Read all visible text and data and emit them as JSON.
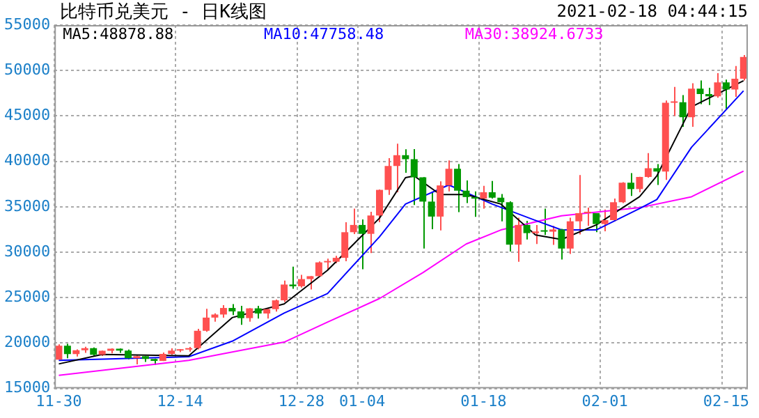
{
  "chart_data": {
    "type": "candlestick",
    "title": "比特币兑美元 - 日K线图",
    "annotations": [
      "2021-02-18 04:44:15"
    ],
    "categories": [
      "11-30",
      null,
      null,
      null,
      null,
      null,
      null,
      null,
      null,
      null,
      null,
      null,
      null,
      null,
      "12-14",
      null,
      null,
      null,
      null,
      null,
      null,
      null,
      null,
      null,
      null,
      null,
      null,
      null,
      "12-28",
      null,
      null,
      null,
      null,
      null,
      null,
      "01-04",
      null,
      null,
      null,
      null,
      null,
      null,
      null,
      null,
      null,
      null,
      null,
      null,
      null,
      "01-18",
      null,
      null,
      null,
      null,
      null,
      null,
      null,
      null,
      null,
      null,
      null,
      null,
      null,
      "02-01",
      null,
      null,
      null,
      null,
      null,
      null,
      null,
      null,
      null,
      null,
      null,
      null,
      null,
      "02-15",
      null,
      null
    ],
    "ohlc": [
      [
        18180,
        19850,
        18180,
        19700
      ],
      [
        19700,
        19920,
        18330,
        18790
      ],
      [
        18790,
        19310,
        18510,
        19210
      ],
      [
        19210,
        19590,
        18920,
        19440
      ],
      [
        19440,
        19510,
        18600,
        18700
      ],
      [
        18700,
        19170,
        18580,
        19150
      ],
      [
        19150,
        19420,
        18860,
        19370
      ],
      [
        19370,
        19400,
        18920,
        19170
      ],
      [
        19170,
        19290,
        18200,
        18330
      ],
      [
        18330,
        18630,
        17650,
        18550
      ],
      [
        18550,
        18560,
        17920,
        18250
      ],
      [
        18250,
        18290,
        17580,
        18040
      ],
      [
        18040,
        18950,
        18020,
        18810
      ],
      [
        18810,
        19410,
        18710,
        19170
      ],
      [
        19170,
        19340,
        19000,
        19280
      ],
      [
        19280,
        19570,
        19050,
        19440
      ],
      [
        19440,
        21560,
        19300,
        21350
      ],
      [
        21350,
        23770,
        21230,
        22800
      ],
      [
        22800,
        23280,
        22350,
        23140
      ],
      [
        23140,
        24170,
        22800,
        23860
      ],
      [
        23860,
        24290,
        23070,
        23480
      ],
      [
        23480,
        24100,
        22000,
        22740
      ],
      [
        22740,
        23840,
        22360,
        23820
      ],
      [
        23820,
        24100,
        22700,
        23250
      ],
      [
        23250,
        23780,
        22700,
        23730
      ],
      [
        23730,
        24790,
        23460,
        24700
      ],
      [
        24700,
        26870,
        24510,
        26440
      ],
      [
        26440,
        28400,
        25970,
        26250
      ],
      [
        26250,
        27500,
        26100,
        27040
      ],
      [
        27040,
        27370,
        25900,
        27360
      ],
      [
        27360,
        28990,
        27330,
        28880
      ],
      [
        28880,
        29300,
        28000,
        28950
      ],
      [
        28950,
        29600,
        28800,
        29380
      ],
      [
        29380,
        33300,
        29000,
        32200
      ],
      [
        32200,
        34800,
        32000,
        33000
      ],
      [
        33000,
        33600,
        28130,
        32020
      ],
      [
        32020,
        34440,
        29900,
        34040
      ],
      [
        34040,
        36900,
        33300,
        36860
      ],
      [
        36860,
        40350,
        36300,
        39490
      ],
      [
        39490,
        41950,
        36600,
        40670
      ],
      [
        40670,
        41330,
        38750,
        40240
      ],
      [
        40240,
        41350,
        35200,
        38240
      ],
      [
        38240,
        38260,
        30400,
        35570
      ],
      [
        35570,
        36600,
        32530,
        33920
      ],
      [
        33920,
        37800,
        32400,
        37350
      ],
      [
        37350,
        40100,
        36700,
        39190
      ],
      [
        39190,
        39700,
        34400,
        36770
      ],
      [
        36770,
        37900,
        35400,
        36070
      ],
      [
        36070,
        36700,
        33900,
        35900
      ],
      [
        35900,
        37300,
        34800,
        36600
      ],
      [
        36600,
        37850,
        35900,
        36000
      ],
      [
        36000,
        36400,
        33400,
        35500
      ],
      [
        35500,
        35600,
        30070,
        30830
      ],
      [
        30830,
        33800,
        28950,
        33000
      ],
      [
        33000,
        33450,
        31400,
        32100
      ],
      [
        32100,
        33000,
        30900,
        32280
      ],
      [
        32280,
        34800,
        31900,
        32260
      ],
      [
        32260,
        32900,
        30800,
        32500
      ],
      [
        32500,
        32560,
        29200,
        30400
      ],
      [
        30400,
        33800,
        29800,
        33400
      ],
      [
        33400,
        38500,
        31950,
        34300
      ],
      [
        34300,
        34900,
        32900,
        34300
      ],
      [
        34300,
        34300,
        32200,
        33100
      ],
      [
        33100,
        34700,
        32300,
        33530
      ],
      [
        33530,
        35900,
        33400,
        35500
      ],
      [
        35500,
        37700,
        35400,
        37650
      ],
      [
        37650,
        38700,
        36200,
        36950
      ],
      [
        36950,
        38300,
        36600,
        38290
      ],
      [
        38290,
        40900,
        38200,
        39250
      ],
      [
        39250,
        39700,
        37400,
        38880
      ],
      [
        38880,
        46700,
        37950,
        46450
      ],
      [
        46450,
        48200,
        45000,
        46500
      ],
      [
        46500,
        47300,
        43800,
        44850
      ],
      [
        44850,
        48600,
        43800,
        48000
      ],
      [
        48000,
        48900,
        46300,
        47400
      ],
      [
        47400,
        48100,
        46200,
        47160
      ],
      [
        47160,
        49700,
        47000,
        48700
      ],
      [
        48700,
        49000,
        45800,
        47900
      ],
      [
        47900,
        50500,
        47100,
        49100
      ],
      [
        49100,
        51700,
        48900,
        51500
      ]
    ],
    "series": [
      {
        "name": "MA5:48878.88",
        "type": "line",
        "color": "#000000",
        "values": [
          17700,
          null,
          null,
          null,
          null,
          18750,
          null,
          null,
          null,
          null,
          null,
          null,
          null,
          null,
          null,
          18600,
          null,
          null,
          null,
          null,
          22800,
          null,
          null,
          null,
          null,
          null,
          24300,
          null,
          null,
          null,
          null,
          28000,
          null,
          null,
          null,
          null,
          null,
          33750,
          null,
          null,
          38200,
          38400,
          null,
          null,
          36350,
          null,
          null,
          36350,
          null,
          null,
          null,
          35300,
          null,
          null,
          null,
          31900,
          null,
          null,
          31400,
          null,
          null,
          null,
          33000,
          null,
          null,
          null,
          null,
          36100,
          null,
          38400,
          null,
          null,
          null,
          46000,
          null,
          null,
          null,
          null,
          null,
          48879
        ]
      },
      {
        "name": "MA10:47758.48",
        "type": "line",
        "color": "#0000ff",
        "values": [
          18100,
          null,
          null,
          null,
          null,
          null,
          null,
          null,
          null,
          null,
          null,
          null,
          null,
          null,
          null,
          18500,
          null,
          null,
          null,
          null,
          20200,
          null,
          null,
          null,
          null,
          null,
          23300,
          null,
          null,
          null,
          null,
          25450,
          null,
          null,
          null,
          null,
          null,
          31700,
          null,
          null,
          35300,
          null,
          null,
          null,
          null,
          37400,
          null,
          null,
          null,
          null,
          35300,
          null,
          null,
          null,
          null,
          33500,
          null,
          null,
          32450,
          null,
          null,
          null,
          32450,
          null,
          null,
          null,
          null,
          34800,
          null,
          35800,
          null,
          null,
          null,
          41550,
          null,
          null,
          null,
          null,
          null,
          47758
        ]
      },
      {
        "name": "MA30:38924.6733",
        "type": "line",
        "color": "#ff00ff",
        "values": [
          16450,
          null,
          null,
          null,
          null,
          null,
          null,
          null,
          null,
          null,
          null,
          null,
          null,
          null,
          null,
          18100,
          null,
          null,
          null,
          null,
          null,
          null,
          null,
          null,
          null,
          null,
          20100,
          null,
          null,
          null,
          null,
          22300,
          null,
          null,
          null,
          null,
          null,
          24900,
          null,
          null,
          null,
          null,
          27750,
          null,
          null,
          null,
          null,
          30900,
          null,
          null,
          null,
          32450,
          null,
          null,
          null,
          null,
          null,
          null,
          34000,
          null,
          null,
          null,
          null,
          null,
          null,
          null,
          null,
          34900,
          null,
          null,
          null,
          null,
          null,
          36100,
          null,
          null,
          null,
          null,
          null,
          38925
        ]
      }
    ],
    "ylim": [
      15000,
      55000
    ],
    "yticks": [
      15000,
      20000,
      25000,
      30000,
      35000,
      40000,
      45000,
      50000,
      55000
    ],
    "grid": true,
    "legend": "top left",
    "marker": "none"
  }
}
